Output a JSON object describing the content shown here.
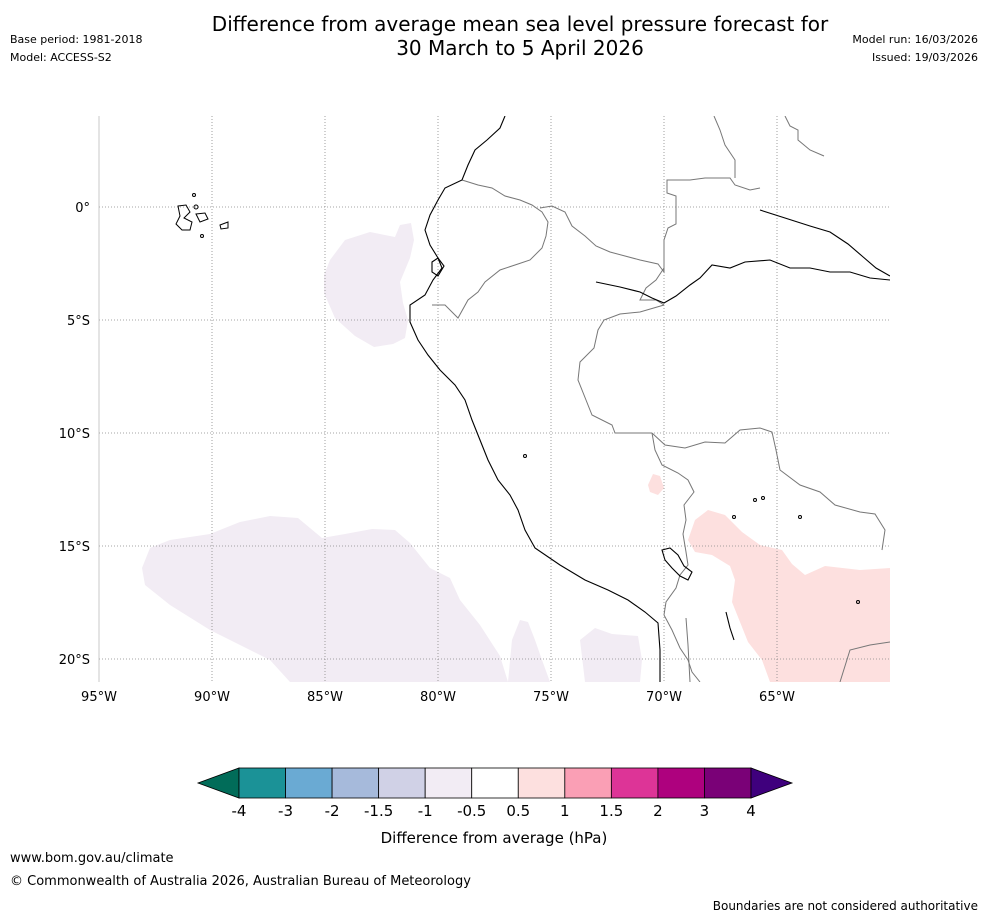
{
  "header": {
    "title_line1": "Difference from average mean sea level pressure forecast for",
    "title_line2": "30 March to 5 April 2026",
    "base_period": "Base period: 1981-2018",
    "model": "Model: ACCESS-S2",
    "model_run": "Model run: 16/03/2026",
    "issued": "Issued: 19/03/2026"
  },
  "map": {
    "region": "Western South America",
    "lon_range": [
      -95,
      -60.1
    ],
    "lat_range": [
      -21,
      4
    ],
    "lon_ticks": [
      {
        "value": -95,
        "label": "95°W"
      },
      {
        "value": -90,
        "label": "90°W"
      },
      {
        "value": -85,
        "label": "85°W"
      },
      {
        "value": -80,
        "label": "80°W"
      },
      {
        "value": -75,
        "label": "75°W"
      },
      {
        "value": -70,
        "label": "70°W"
      },
      {
        "value": -65,
        "label": "65°W"
      }
    ],
    "lat_ticks": [
      {
        "value": 0,
        "label": "0°"
      },
      {
        "value": -5,
        "label": "5°S"
      },
      {
        "value": -10,
        "label": "10°S"
      },
      {
        "value": -15,
        "label": "15°S"
      },
      {
        "value": -20,
        "label": "20°S"
      }
    ],
    "anomaly_regions": [
      {
        "name": "offshore-ecuador-peru",
        "category": "-1 to -0.5",
        "color": "#f2ecf4"
      },
      {
        "name": "southeast-pacific",
        "category": "-1 to -0.5",
        "color": "#f2ecf4"
      },
      {
        "name": "off-northern-chile",
        "category": "-1 to -0.5",
        "color": "#f2ecf4"
      },
      {
        "name": "bolivia-paraguay",
        "category": "0.5 to 1",
        "color": "#fde0df"
      },
      {
        "name": "western-bolivia-patch",
        "category": "0.5 to 1",
        "color": "#fde0df"
      }
    ]
  },
  "colorbar": {
    "label": "Difference from average (hPa)",
    "tick_labels": [
      "-4",
      "-3",
      "-2",
      "-1.5",
      "-1",
      "-0.5",
      "0.5",
      "1",
      "1.5",
      "2",
      "3",
      "4"
    ],
    "lower_extend_color": "#016c59",
    "upper_extend_color": "#3f007d",
    "bins": [
      {
        "range": "-4 to -3",
        "color": "#1b9297"
      },
      {
        "range": "-3 to -2",
        "color": "#6aaad3"
      },
      {
        "range": "-2 to -1.5",
        "color": "#a6badb"
      },
      {
        "range": "-1.5 to -1",
        "color": "#d0d1e6"
      },
      {
        "range": "-1 to -0.5",
        "color": "#f2ecf4"
      },
      {
        "range": "-0.5 to 0.5",
        "color": "#ffffff"
      },
      {
        "range": "0.5 to 1",
        "color": "#fde0df"
      },
      {
        "range": "1 to 1.5",
        "color": "#fa9fb5"
      },
      {
        "range": "1.5 to 2",
        "color": "#dd3497"
      },
      {
        "range": "2 to 3",
        "color": "#ae017e"
      },
      {
        "range": "3 to 4",
        "color": "#7a0177"
      }
    ]
  },
  "footer": {
    "url": "www.bom.gov.au/climate",
    "copyright": "© Commonwealth of Australia 2026, Australian Bureau of Meteorology",
    "note": "Boundaries are not considered authoritative"
  }
}
